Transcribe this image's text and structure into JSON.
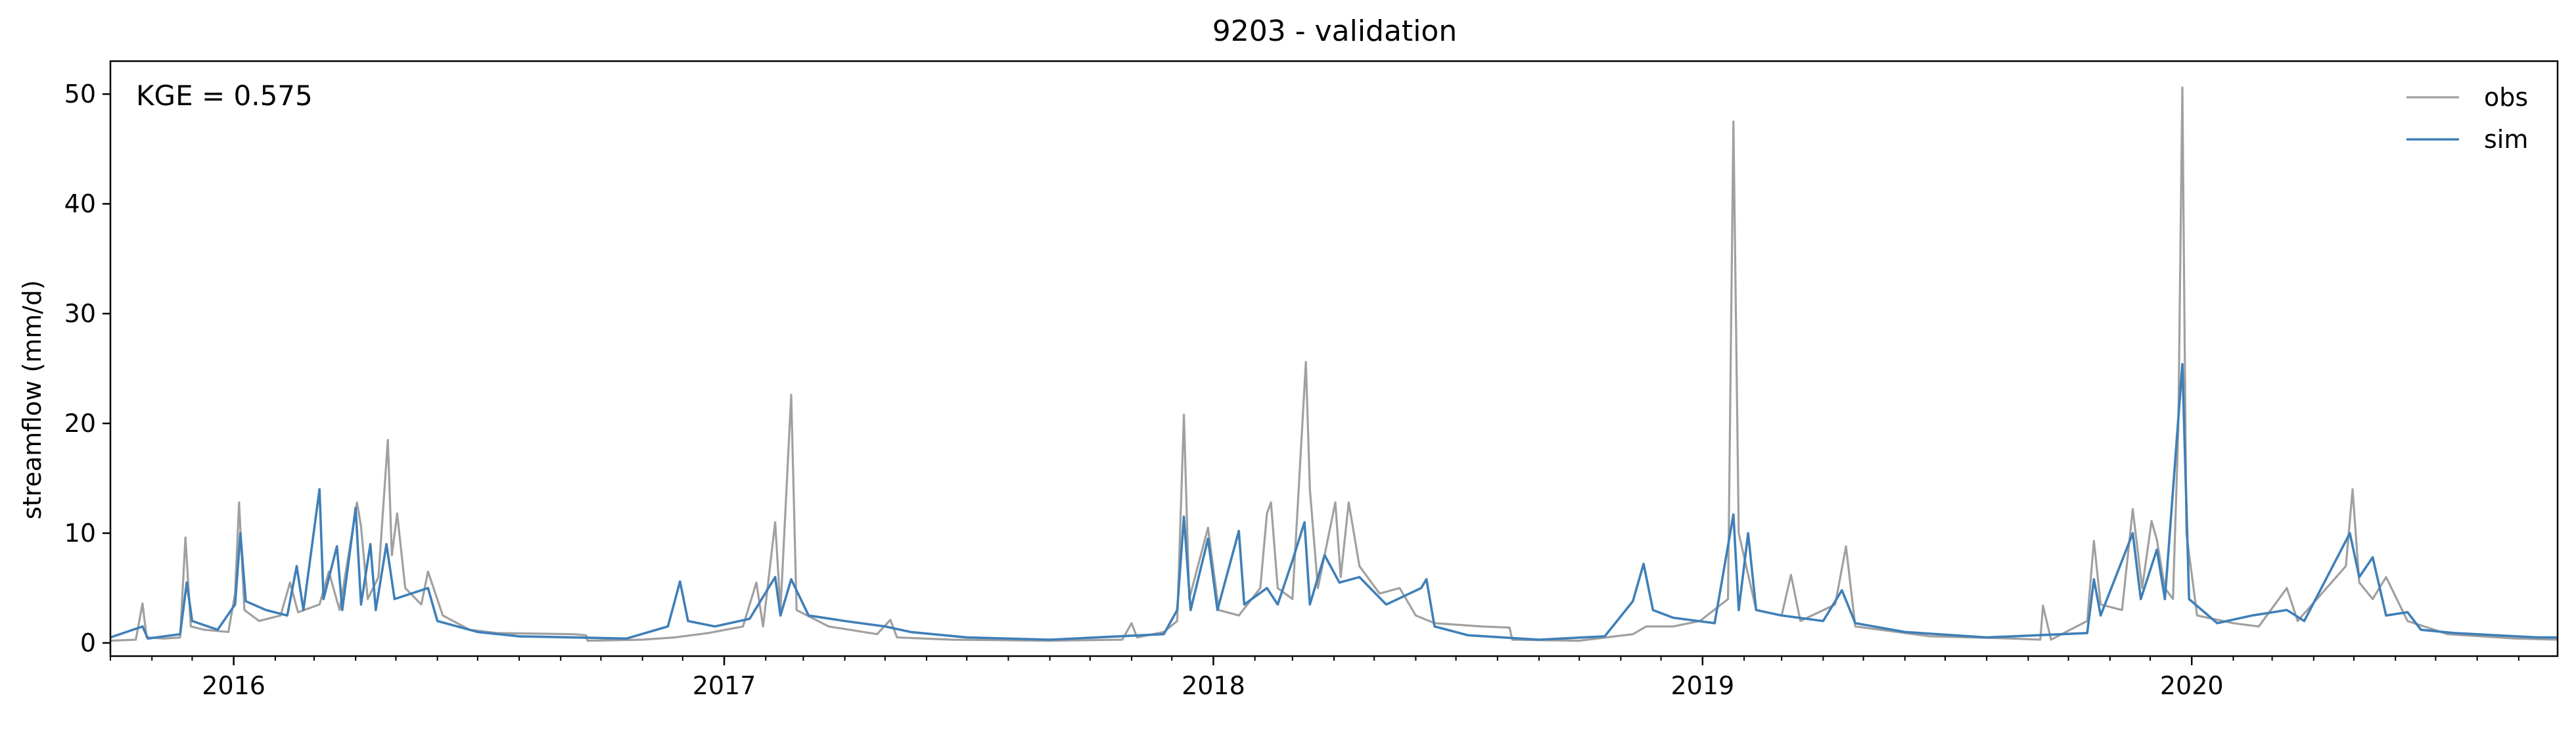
{
  "chart_data": {
    "type": "line",
    "title": "9203 - validation",
    "xlabel": "",
    "ylabel": "streamflow (mm/d)",
    "annotation": "KGE = 0.575",
    "xlim": [
      "2015-10-01",
      "2020-09-30"
    ],
    "ylim": [
      -1.2,
      53
    ],
    "y_ticks": [
      0,
      10,
      20,
      30,
      40,
      50
    ],
    "x_major_ticks": [
      {
        "date": "2016-01-01",
        "label": "2016"
      },
      {
        "date": "2017-01-01",
        "label": "2017"
      },
      {
        "date": "2018-01-01",
        "label": "2018"
      },
      {
        "date": "2019-01-01",
        "label": "2019"
      },
      {
        "date": "2020-01-01",
        "label": "2020"
      }
    ],
    "grid": false,
    "legend_position": "top-right",
    "series": [
      {
        "name": "obs",
        "color": "#a0a0a0",
        "points": [
          [
            "2015-10-01",
            0.2
          ],
          [
            "2015-10-20",
            0.3
          ],
          [
            "2015-10-25",
            3.6
          ],
          [
            "2015-10-28",
            0.5
          ],
          [
            "2015-11-10",
            0.4
          ],
          [
            "2015-11-22",
            0.5
          ],
          [
            "2015-11-26",
            9.6
          ],
          [
            "2015-11-30",
            1.5
          ],
          [
            "2015-12-10",
            1.2
          ],
          [
            "2015-12-28",
            1.0
          ],
          [
            "2016-01-02",
            4.5
          ],
          [
            "2016-01-05",
            12.8
          ],
          [
            "2016-01-09",
            3.0
          ],
          [
            "2016-01-20",
            2.0
          ],
          [
            "2016-02-05",
            2.5
          ],
          [
            "2016-02-12",
            5.5
          ],
          [
            "2016-02-18",
            2.8
          ],
          [
            "2016-03-05",
            3.5
          ],
          [
            "2016-03-12",
            6.5
          ],
          [
            "2016-03-20",
            3.0
          ],
          [
            "2016-03-28",
            9.0
          ],
          [
            "2016-04-02",
            12.8
          ],
          [
            "2016-04-05",
            10.6
          ],
          [
            "2016-04-10",
            4.0
          ],
          [
            "2016-04-18",
            6.0
          ],
          [
            "2016-04-25",
            18.5
          ],
          [
            "2016-04-28",
            8.0
          ],
          [
            "2016-05-02",
            11.8
          ],
          [
            "2016-05-08",
            5.0
          ],
          [
            "2016-05-20",
            3.5
          ],
          [
            "2016-05-25",
            6.5
          ],
          [
            "2016-06-05",
            2.5
          ],
          [
            "2016-06-25",
            1.2
          ],
          [
            "2016-07-15",
            0.9
          ],
          [
            "2016-09-10",
            0.8
          ],
          [
            "2016-09-20",
            0.7
          ],
          [
            "2016-09-21",
            0.2
          ],
          [
            "2016-11-01",
            0.3
          ],
          [
            "2016-11-25",
            0.5
          ],
          [
            "2016-12-20",
            0.9
          ],
          [
            "2017-01-15",
            1.5
          ],
          [
            "2017-01-25",
            5.5
          ],
          [
            "2017-01-30",
            1.5
          ],
          [
            "2017-02-08",
            11.0
          ],
          [
            "2017-02-12",
            3.0
          ],
          [
            "2017-02-20",
            22.6
          ],
          [
            "2017-02-24",
            3.0
          ],
          [
            "2017-03-20",
            1.5
          ],
          [
            "2017-04-25",
            0.8
          ],
          [
            "2017-05-05",
            2.1
          ],
          [
            "2017-05-10",
            0.5
          ],
          [
            "2017-06-20",
            0.3
          ],
          [
            "2017-09-01",
            0.2
          ],
          [
            "2017-10-25",
            0.3
          ],
          [
            "2017-11-01",
            1.8
          ],
          [
            "2017-11-05",
            0.5
          ],
          [
            "2017-11-25",
            1.0
          ],
          [
            "2017-12-05",
            2.0
          ],
          [
            "2017-12-10",
            20.8
          ],
          [
            "2017-12-14",
            4.0
          ],
          [
            "2017-12-28",
            10.5
          ],
          [
            "2018-01-05",
            3.0
          ],
          [
            "2018-01-20",
            2.5
          ],
          [
            "2018-02-05",
            5.0
          ],
          [
            "2018-02-10",
            11.8
          ],
          [
            "2018-02-13",
            12.8
          ],
          [
            "2018-02-18",
            5.0
          ],
          [
            "2018-03-01",
            4.0
          ],
          [
            "2018-03-11",
            25.6
          ],
          [
            "2018-03-14",
            14.0
          ],
          [
            "2018-03-20",
            5.0
          ],
          [
            "2018-04-02",
            12.8
          ],
          [
            "2018-04-06",
            6.0
          ],
          [
            "2018-04-12",
            12.8
          ],
          [
            "2018-04-20",
            7.0
          ],
          [
            "2018-05-05",
            4.5
          ],
          [
            "2018-05-20",
            5.0
          ],
          [
            "2018-06-01",
            2.5
          ],
          [
            "2018-06-15",
            1.8
          ],
          [
            "2018-07-20",
            1.5
          ],
          [
            "2018-08-10",
            1.4
          ],
          [
            "2018-08-12",
            0.3
          ],
          [
            "2018-10-01",
            0.2
          ],
          [
            "2018-11-10",
            0.8
          ],
          [
            "2018-11-20",
            1.5
          ],
          [
            "2018-12-10",
            1.5
          ],
          [
            "2018-12-30",
            2.0
          ],
          [
            "2019-01-20",
            4.0
          ],
          [
            "2019-01-24",
            47.5
          ],
          [
            "2019-01-28",
            10.0
          ],
          [
            "2019-02-10",
            3.0
          ],
          [
            "2019-03-01",
            2.5
          ],
          [
            "2019-03-08",
            6.2
          ],
          [
            "2019-03-15",
            2.0
          ],
          [
            "2019-04-10",
            3.5
          ],
          [
            "2019-04-18",
            8.8
          ],
          [
            "2019-04-25",
            1.5
          ],
          [
            "2019-06-20",
            0.6
          ],
          [
            "2019-08-20",
            0.4
          ],
          [
            "2019-09-10",
            0.3
          ],
          [
            "2019-09-12",
            3.4
          ],
          [
            "2019-09-18",
            0.3
          ],
          [
            "2019-10-15",
            2.0
          ],
          [
            "2019-10-20",
            9.3
          ],
          [
            "2019-10-25",
            3.5
          ],
          [
            "2019-11-10",
            3.0
          ],
          [
            "2019-11-18",
            12.2
          ],
          [
            "2019-11-25",
            5.0
          ],
          [
            "2019-12-02",
            11.1
          ],
          [
            "2019-12-06",
            9.4
          ],
          [
            "2019-12-12",
            5.0
          ],
          [
            "2019-12-18",
            4.0
          ],
          [
            "2019-12-22",
            19.5
          ],
          [
            "2019-12-25",
            50.6
          ],
          [
            "2019-12-28",
            10.0
          ],
          [
            "2020-01-05",
            2.5
          ],
          [
            "2020-02-01",
            1.8
          ],
          [
            "2020-02-20",
            1.5
          ],
          [
            "2020-03-12",
            5.0
          ],
          [
            "2020-03-20",
            2.0
          ],
          [
            "2020-04-25",
            7.0
          ],
          [
            "2020-04-30",
            14.0
          ],
          [
            "2020-05-05",
            5.5
          ],
          [
            "2020-05-15",
            4.0
          ],
          [
            "2020-05-25",
            6.0
          ],
          [
            "2020-06-10",
            2.0
          ],
          [
            "2020-07-10",
            0.8
          ],
          [
            "2020-08-30",
            0.4
          ],
          [
            "2020-09-30",
            0.3
          ]
        ]
      },
      {
        "name": "sim",
        "color": "#3f7fb8",
        "points": [
          [
            "2015-10-01",
            0.5
          ],
          [
            "2015-10-25",
            1.5
          ],
          [
            "2015-10-29",
            0.4
          ],
          [
            "2015-11-22",
            0.8
          ],
          [
            "2015-11-27",
            5.5
          ],
          [
            "2015-12-01",
            2.0
          ],
          [
            "2015-12-20",
            1.2
          ],
          [
            "2016-01-02",
            3.5
          ],
          [
            "2016-01-06",
            10.0
          ],
          [
            "2016-01-10",
            3.8
          ],
          [
            "2016-01-25",
            3.0
          ],
          [
            "2016-02-10",
            2.5
          ],
          [
            "2016-02-17",
            7.0
          ],
          [
            "2016-02-22",
            3.0
          ],
          [
            "2016-03-05",
            14.0
          ],
          [
            "2016-03-08",
            4.0
          ],
          [
            "2016-03-18",
            8.8
          ],
          [
            "2016-03-22",
            3.0
          ],
          [
            "2016-04-01",
            12.3
          ],
          [
            "2016-04-05",
            3.5
          ],
          [
            "2016-04-12",
            9.0
          ],
          [
            "2016-04-16",
            3.0
          ],
          [
            "2016-04-24",
            9.0
          ],
          [
            "2016-04-30",
            4.0
          ],
          [
            "2016-05-25",
            5.0
          ],
          [
            "2016-06-01",
            2.0
          ],
          [
            "2016-07-01",
            1.0
          ],
          [
            "2016-08-01",
            0.6
          ],
          [
            "2016-10-20",
            0.4
          ],
          [
            "2016-11-20",
            1.5
          ],
          [
            "2016-11-29",
            5.6
          ],
          [
            "2016-12-05",
            2.0
          ],
          [
            "2016-12-25",
            1.5
          ],
          [
            "2017-01-20",
            2.2
          ],
          [
            "2017-02-08",
            6.0
          ],
          [
            "2017-02-12",
            2.5
          ],
          [
            "2017-02-20",
            5.8
          ],
          [
            "2017-03-05",
            2.5
          ],
          [
            "2017-04-01",
            2.0
          ],
          [
            "2017-05-01",
            1.5
          ],
          [
            "2017-05-20",
            1.0
          ],
          [
            "2017-07-01",
            0.5
          ],
          [
            "2017-09-01",
            0.3
          ],
          [
            "2017-11-25",
            0.8
          ],
          [
            "2017-12-05",
            3.0
          ],
          [
            "2017-12-10",
            11.5
          ],
          [
            "2017-12-15",
            3.0
          ],
          [
            "2017-12-28",
            9.5
          ],
          [
            "2018-01-04",
            3.0
          ],
          [
            "2018-01-20",
            10.2
          ],
          [
            "2018-01-24",
            3.5
          ],
          [
            "2018-02-10",
            5.0
          ],
          [
            "2018-02-18",
            3.5
          ],
          [
            "2018-03-01",
            7.5
          ],
          [
            "2018-03-10",
            11.0
          ],
          [
            "2018-03-14",
            3.5
          ],
          [
            "2018-03-25",
            8.0
          ],
          [
            "2018-04-05",
            5.5
          ],
          [
            "2018-04-20",
            6.0
          ],
          [
            "2018-05-10",
            3.5
          ],
          [
            "2018-06-05",
            5.0
          ],
          [
            "2018-06-09",
            5.8
          ],
          [
            "2018-06-15",
            1.5
          ],
          [
            "2018-07-10",
            0.7
          ],
          [
            "2018-09-01",
            0.3
          ],
          [
            "2018-10-20",
            0.6
          ],
          [
            "2018-11-10",
            3.8
          ],
          [
            "2018-11-18",
            7.2
          ],
          [
            "2018-11-25",
            3.0
          ],
          [
            "2018-12-10",
            2.3
          ],
          [
            "2019-01-10",
            1.8
          ],
          [
            "2019-01-24",
            11.7
          ],
          [
            "2019-01-28",
            3.0
          ],
          [
            "2019-02-04",
            10.0
          ],
          [
            "2019-02-10",
            3.0
          ],
          [
            "2019-03-01",
            2.5
          ],
          [
            "2019-04-01",
            2.0
          ],
          [
            "2019-04-15",
            4.8
          ],
          [
            "2019-04-25",
            1.8
          ],
          [
            "2019-06-01",
            1.0
          ],
          [
            "2019-08-01",
            0.5
          ],
          [
            "2019-10-15",
            0.9
          ],
          [
            "2019-10-20",
            5.8
          ],
          [
            "2019-10-25",
            2.5
          ],
          [
            "2019-11-18",
            10.0
          ],
          [
            "2019-11-24",
            4.0
          ],
          [
            "2019-12-06",
            8.5
          ],
          [
            "2019-12-12",
            4.0
          ],
          [
            "2019-12-25",
            25.4
          ],
          [
            "2019-12-30",
            4.0
          ],
          [
            "2020-01-20",
            1.8
          ],
          [
            "2020-02-15",
            2.5
          ],
          [
            "2020-03-12",
            3.0
          ],
          [
            "2020-03-25",
            2.0
          ],
          [
            "2020-04-28",
            10.0
          ],
          [
            "2020-05-05",
            6.0
          ],
          [
            "2020-05-15",
            7.8
          ],
          [
            "2020-05-25",
            2.5
          ],
          [
            "2020-06-10",
            2.8
          ],
          [
            "2020-06-20",
            1.2
          ],
          [
            "2020-07-15",
            0.9
          ],
          [
            "2020-09-15",
            0.5
          ],
          [
            "2020-09-30",
            0.5
          ]
        ]
      }
    ]
  }
}
